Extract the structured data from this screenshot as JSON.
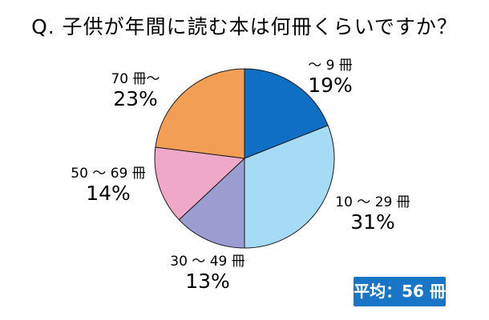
{
  "chart_data": {
    "type": "pie",
    "title": "Q. 子供が年間に読む本は何冊くらいですか？",
    "start_angle_deg": 0,
    "direction": "clockwise",
    "slices": [
      {
        "label": "～ 9 冊",
        "value": 19,
        "value_label": "19%",
        "color": "#0f6fc4"
      },
      {
        "label": "10 ～ 29 冊",
        "value": 31,
        "value_label": "31%",
        "color": "#a6dbf5"
      },
      {
        "label": "30 ～ 49 冊",
        "value": 13,
        "value_label": "13%",
        "color": "#9b9ccf"
      },
      {
        "label": "50 ～ 69 冊",
        "value": 14,
        "value_label": "14%",
        "color": "#f0a8c8"
      },
      {
        "label": "70 冊～",
        "value": 23,
        "value_label": "23%",
        "color": "#f29e55"
      }
    ],
    "slice_border_color": "#1a1a1a"
  },
  "summary": {
    "average_label": "平均：56 冊",
    "badge_color": "#1b75c6"
  }
}
